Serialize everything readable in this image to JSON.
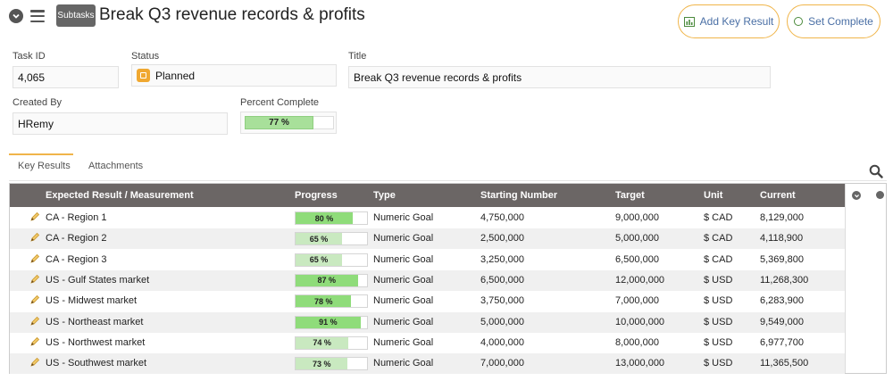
{
  "header": {
    "subtasks_label": "Subtasks",
    "title": "Break Q3 revenue records & profits",
    "add_key_result_label": "Add Key Result",
    "set_complete_label": "Set Complete"
  },
  "form": {
    "task_id_label": "Task ID",
    "task_id_value": "4,065",
    "status_label": "Status",
    "status_value": "Planned",
    "title_label": "Title",
    "title_value": "Break Q3 revenue records & profits",
    "created_by_label": "Created By",
    "created_by_value": "HRemy",
    "percent_complete_label": "Percent Complete",
    "percent_complete_value": 77,
    "percent_complete_text": "77 %"
  },
  "tabs": [
    {
      "label": "Key Results",
      "active": true
    },
    {
      "label": "Attachments",
      "active": false
    }
  ],
  "table": {
    "columns": {
      "measurement": "Expected Result / Measurement",
      "progress": "Progress",
      "type": "Type",
      "starting": "Starting Number",
      "target": "Target",
      "unit": "Unit",
      "current": "Current"
    },
    "rows": [
      {
        "name": "CA - Region 1",
        "progress": 80,
        "progress_text": "80 %",
        "type": "Numeric Goal",
        "starting": "4,750,000",
        "target": "9,000,000",
        "unit": "$ CAD",
        "current": "8,129,000"
      },
      {
        "name": "CA - Region 2",
        "progress": 65,
        "progress_text": "65 %",
        "type": "Numeric Goal",
        "starting": "2,500,000",
        "target": "5,000,000",
        "unit": "$ CAD",
        "current": "4,118,900"
      },
      {
        "name": "CA - Region 3",
        "progress": 65,
        "progress_text": "65 %",
        "type": "Numeric Goal",
        "starting": "3,250,000",
        "target": "6,500,000",
        "unit": "$ CAD",
        "current": "5,369,800"
      },
      {
        "name": "US - Gulf States market",
        "progress": 87,
        "progress_text": "87 %",
        "type": "Numeric Goal",
        "starting": "6,500,000",
        "target": "12,000,000",
        "unit": "$ USD",
        "current": "11,268,300"
      },
      {
        "name": "US - Midwest market",
        "progress": 78,
        "progress_text": "78 %",
        "type": "Numeric Goal",
        "starting": "3,750,000",
        "target": "7,000,000",
        "unit": "$ USD",
        "current": "6,283,900"
      },
      {
        "name": "US - Northeast market",
        "progress": 91,
        "progress_text": "91 %",
        "type": "Numeric Goal",
        "starting": "5,000,000",
        "target": "10,000,000",
        "unit": "$ USD",
        "current": "9,549,000"
      },
      {
        "name": "US - Northwest market",
        "progress": 74,
        "progress_text": "74 %",
        "type": "Numeric Goal",
        "starting": "4,000,000",
        "target": "8,000,000",
        "unit": "$ USD",
        "current": "6,977,700"
      },
      {
        "name": "US - Southwest market",
        "progress": 73,
        "progress_text": "73 %",
        "type": "Numeric Goal",
        "starting": "7,000,000",
        "target": "13,000,000",
        "unit": "$ USD",
        "current": "11,365,500"
      }
    ]
  },
  "colors": {
    "accent_border": "#f0b54a",
    "header_bg": "#6b6665",
    "progress_high": "#8fdc7a",
    "progress_mid": "#c9e9c0",
    "status_planned": "#f0a830"
  },
  "icons": {
    "collapse": "chevron-down-circle-icon",
    "menu": "hamburger-menu-icon",
    "add_key_result": "bar-chart-icon",
    "set_complete": "circle-outline-icon",
    "search": "search-icon",
    "row_edit": "pencil-icon"
  }
}
